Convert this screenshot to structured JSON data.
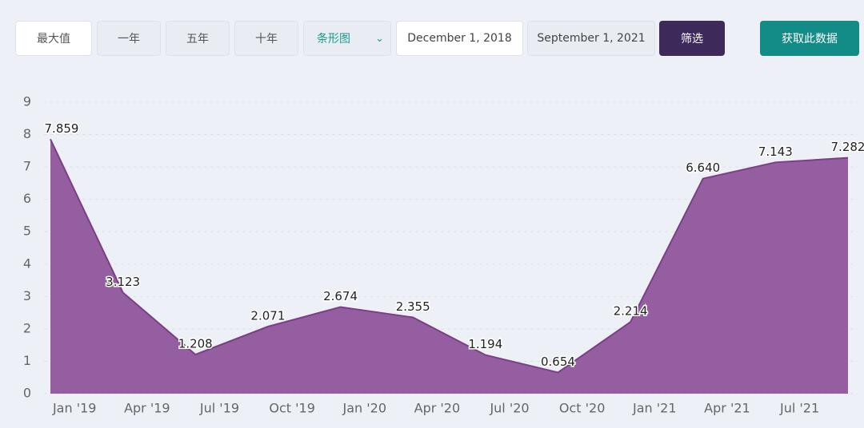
{
  "toolbar": {
    "buttons": [
      "最大值",
      "一年",
      "五年",
      "十年"
    ],
    "select": "条形图",
    "start_date": "December 1, 2018",
    "end_date": "September 1, 2021",
    "filter": "筛选",
    "get_data": "获取此数据"
  },
  "chart_data": {
    "type": "area",
    "categories": [
      null,
      null,
      null,
      null,
      null,
      null,
      null,
      null,
      null,
      null,
      null,
      null
    ],
    "x_labels": [
      "Jan '19",
      "Apr '19",
      "Jul '19",
      "Oct '19",
      "Jan '20",
      "Apr '20",
      "Jul '20",
      "Oct '20",
      "Jan '21",
      "Apr '21",
      "Jul '21"
    ],
    "values": [
      7.859,
      3.123,
      1.208,
      2.071,
      2.674,
      2.355,
      1.194,
      0.654,
      2.214,
      6.64,
      7.143,
      7.282
    ],
    "value_labels": [
      "7.859",
      "3.123",
      "1.208",
      "2.071",
      "2.674",
      "2.355",
      "1.194",
      "0.654",
      "2.214",
      "6.640",
      "7.143",
      "7.282"
    ],
    "color": "#955ea0",
    "ylim": [
      0,
      9
    ],
    "yticks": [
      0,
      1,
      2,
      3,
      4,
      5,
      6,
      7,
      8,
      9
    ],
    "grid": true
  }
}
